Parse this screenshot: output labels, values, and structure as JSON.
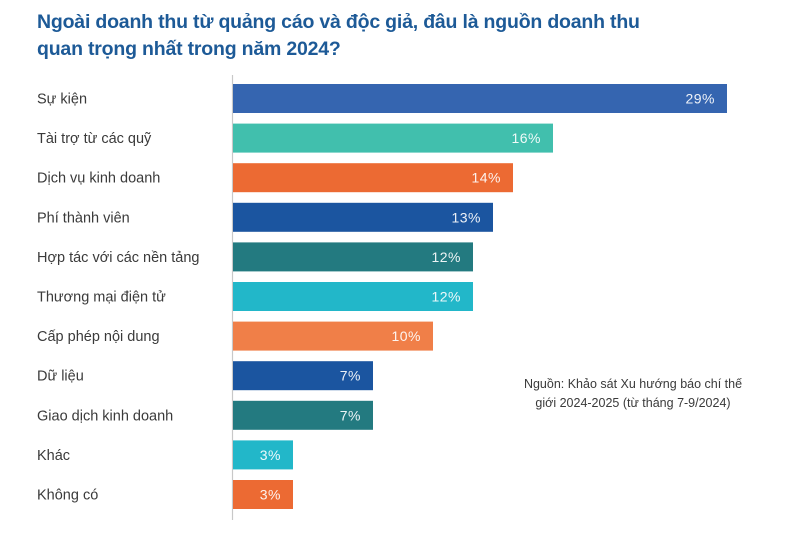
{
  "chart_data": {
    "type": "bar",
    "orientation": "horizontal",
    "title_lines": [
      "Ngoài doanh thu từ quảng cáo và độc giả, đâu là nguồn doanh thu",
      "quan trọng nhất trong năm 2024?"
    ],
    "title": "Ngoài doanh thu từ quảng cáo và độc giả, đâu là nguồn doanh thu quan trọng nhất trong năm 2024?",
    "xlabel": "",
    "ylabel": "",
    "unit": "%",
    "grid": false,
    "categories": [
      "Sự kiện",
      "Tài trợ từ các quỹ",
      "Dịch vụ kinh doanh",
      "Phí thành viên",
      "Hợp tác với các nền tảng",
      "Thương mại điện tử",
      "Cấp phép nội dung",
      "Dữ liệu",
      "Giao dịch kinh doanh",
      "Khác",
      "Không có"
    ],
    "values": [
      29,
      16,
      14,
      13,
      12,
      12,
      10,
      7,
      7,
      3,
      3
    ],
    "value_labels": [
      "29%",
      "16%",
      "14%",
      "13%",
      "12%",
      "12%",
      "10%",
      "7%",
      "7%",
      "3%",
      "3%"
    ],
    "colors": [
      "#3565b0",
      "#41bfad",
      "#ec6a33",
      "#1b55a0",
      "#237a80",
      "#22b7c9",
      "#f07f48",
      "#1b55a0",
      "#237a80",
      "#22b7c9",
      "#ec6a33"
    ],
    "annotation": "Nguồn: Khảo sát Xu hướng báo chí thế giới 2024-2025 (từ tháng 7-9/2024)"
  },
  "header": {
    "title_line1": "Ngoài doanh thu từ quảng cáo và độc giả, đâu là nguồn doanh thu",
    "title_line2": "quan trọng nhất trong năm 2024?"
  },
  "source": {
    "line1": "Nguồn: Khảo sát Xu hướng báo chí thế",
    "line2": "giới 2024-2025 (từ tháng 7-9/2024)"
  },
  "colors": {
    "title": "#1d5a97",
    "axis": "#c8c8c8",
    "label_text": "#3a3a3a"
  }
}
